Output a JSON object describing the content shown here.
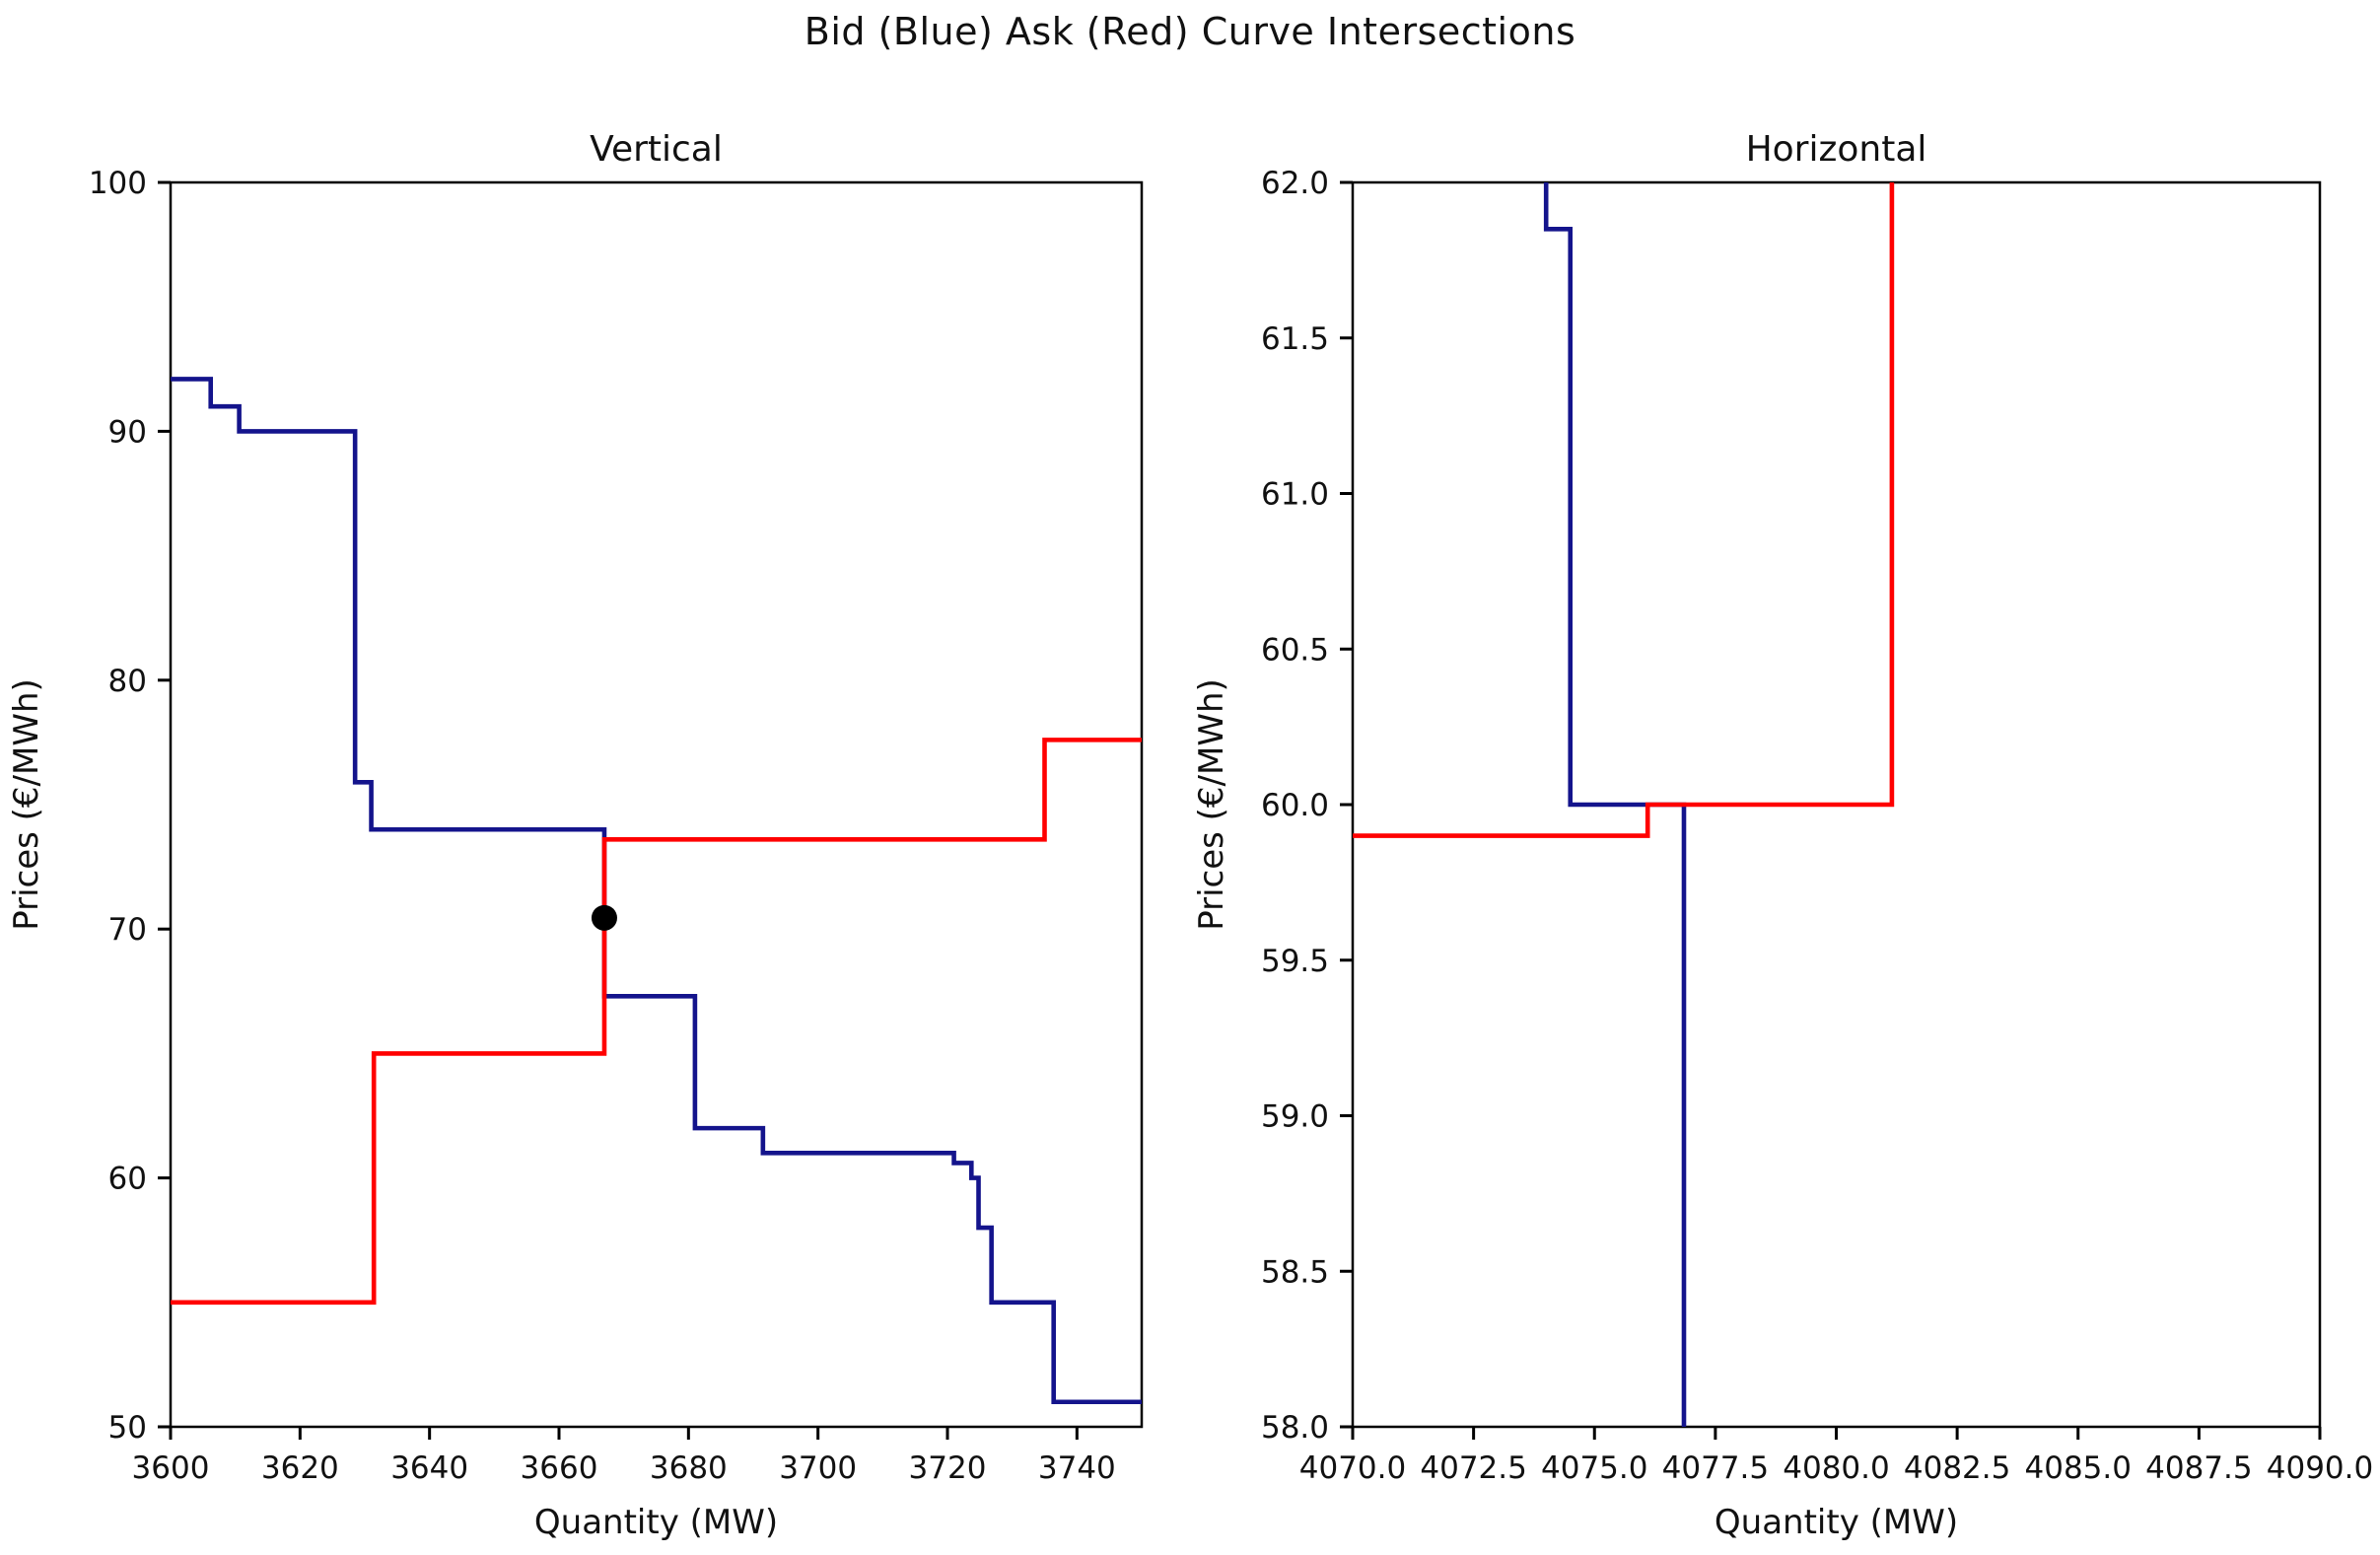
{
  "figure": {
    "suptitle": "Bid (Blue) Ask (Red) Curve Intersections",
    "background": "#ffffff"
  },
  "colors": {
    "bid": "#14148c",
    "ask": "#ff0000",
    "dot": "#000000",
    "axis": "#000000",
    "text": "#111111"
  },
  "chart_data": [
    {
      "type": "line",
      "subtype": "step",
      "title": "Vertical",
      "xlabel": "Quantity (MW)",
      "ylabel": "Prices (€/MWh)",
      "xlim": [
        3600,
        3750
      ],
      "ylim": [
        50,
        100
      ],
      "grid": false,
      "legend": "none",
      "xticks": [
        3600,
        3620,
        3640,
        3660,
        3680,
        3700,
        3720,
        3740
      ],
      "xtick_labels": [
        "3600",
        "3620",
        "3640",
        "3660",
        "3680",
        "3700",
        "3720",
        "3740"
      ],
      "yticks": [
        50,
        60,
        70,
        80,
        90,
        100
      ],
      "ytick_labels": [
        "50",
        "60",
        "70",
        "80",
        "90",
        "100"
      ],
      "series": [
        {
          "name": "Bid",
          "color_key": "bid",
          "points": [
            [
              3600,
              92.1
            ],
            [
              3606.2,
              92.1
            ],
            [
              3606.2,
              91.0
            ],
            [
              3610.6,
              91.0
            ],
            [
              3610.6,
              90.0
            ],
            [
              3628.5,
              90.0
            ],
            [
              3628.5,
              75.9
            ],
            [
              3631.0,
              75.9
            ],
            [
              3631.0,
              74.0
            ],
            [
              3667.0,
              74.0
            ],
            [
              3667.0,
              67.3
            ],
            [
              3681.0,
              67.3
            ],
            [
              3681.0,
              62.0
            ],
            [
              3691.5,
              62.0
            ],
            [
              3691.5,
              61.0
            ],
            [
              3721.0,
              61.0
            ],
            [
              3721.0,
              60.6
            ],
            [
              3723.7,
              60.6
            ],
            [
              3723.7,
              60.0
            ],
            [
              3724.8,
              60.0
            ],
            [
              3724.8,
              58.0
            ],
            [
              3726.8,
              58.0
            ],
            [
              3726.8,
              55.0
            ],
            [
              3736.4,
              55.0
            ],
            [
              3736.4,
              51.0
            ],
            [
              3750.0,
              51.0
            ]
          ]
        },
        {
          "name": "Ask",
          "color_key": "ask",
          "points": [
            [
              3600,
              55.0
            ],
            [
              3631.4,
              55.0
            ],
            [
              3631.4,
              65.0
            ],
            [
              3667.0,
              65.0
            ],
            [
              3667.0,
              73.6
            ],
            [
              3735.0,
              73.6
            ],
            [
              3735.0,
              77.6
            ],
            [
              3750.0,
              77.6
            ]
          ]
        }
      ],
      "markers": [
        {
          "name": "intersection-dot",
          "x": 3667,
          "y": 70.45
        }
      ]
    },
    {
      "type": "line",
      "subtype": "step",
      "title": "Horizontal",
      "xlabel": "Quantity (MW)",
      "ylabel": "Prices (€/MWh)",
      "xlim": [
        4070,
        4090
      ],
      "ylim": [
        58,
        62
      ],
      "grid": false,
      "legend": "none",
      "xticks": [
        4070.0,
        4072.5,
        4075.0,
        4077.5,
        4080.0,
        4082.5,
        4085.0,
        4087.5,
        4090.0
      ],
      "xtick_labels": [
        "4070.0",
        "4072.5",
        "4075.0",
        "4077.5",
        "4080.0",
        "4082.5",
        "4085.0",
        "4087.5",
        "4090.0"
      ],
      "yticks": [
        58.0,
        58.5,
        59.0,
        59.5,
        60.0,
        60.5,
        61.0,
        61.5,
        62.0
      ],
      "ytick_labels": [
        "58.0",
        "58.5",
        "59.0",
        "59.5",
        "60.0",
        "60.5",
        "61.0",
        "61.5",
        "62.0"
      ],
      "series": [
        {
          "name": "Bid",
          "color_key": "bid",
          "points": [
            [
              4074.0,
              62.0
            ],
            [
              4074.0,
              61.85
            ],
            [
              4074.5,
              61.85
            ],
            [
              4074.5,
              60.0
            ],
            [
              4076.85,
              60.0
            ],
            [
              4076.85,
              58.0
            ]
          ]
        },
        {
          "name": "Ask",
          "color_key": "ask",
          "points": [
            [
              4070.0,
              59.9
            ],
            [
              4076.1,
              59.9
            ],
            [
              4076.1,
              60.0
            ],
            [
              4081.15,
              60.0
            ],
            [
              4081.15,
              62.0
            ]
          ]
        }
      ],
      "markers": []
    }
  ]
}
